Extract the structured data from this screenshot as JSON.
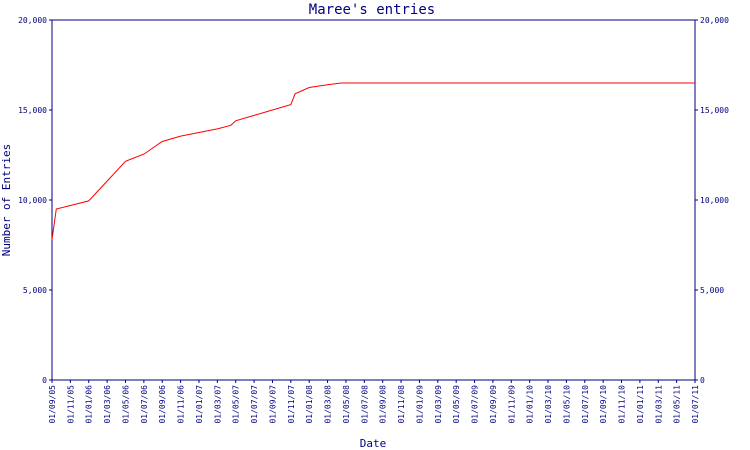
{
  "chart_data": {
    "type": "line",
    "title": "Maree's entries",
    "xlabel": "Date",
    "ylabel": "Number of Entries",
    "ylim": [
      0,
      20000
    ],
    "y_ticks": [
      0,
      5000,
      10000,
      15000,
      20000
    ],
    "y_tick_labels": [
      "0",
      "5,000",
      "10,000",
      "15,000",
      "20,000"
    ],
    "x_tick_labels": [
      "01/09/05",
      "01/11/05",
      "01/01/06",
      "01/03/06",
      "01/05/06",
      "01/07/06",
      "01/09/06",
      "01/11/06",
      "01/01/07",
      "01/03/07",
      "01/05/07",
      "01/07/07",
      "01/09/07",
      "01/11/07",
      "01/01/08",
      "01/03/08",
      "01/05/08",
      "01/07/08",
      "01/09/08",
      "01/11/08",
      "01/01/09",
      "01/03/09",
      "01/05/09",
      "01/07/09",
      "01/09/09",
      "01/11/09",
      "01/01/10",
      "01/03/10",
      "01/05/10",
      "01/07/10",
      "01/09/10",
      "01/11/10",
      "01/01/11",
      "01/03/11",
      "01/05/11",
      "01/07/11"
    ],
    "grid": false,
    "line_color": "#ff0000",
    "axis_color": "#000080",
    "text_color": "#000080",
    "series": [
      {
        "x": [
          "2005-09-01",
          "2005-09-15",
          "2006-01-01",
          "2006-03-01",
          "2006-05-01",
          "2006-07-01",
          "2006-09-01",
          "2006-11-01",
          "2007-01-01",
          "2007-03-01",
          "2007-04-15",
          "2007-05-01",
          "2007-07-01",
          "2007-09-01",
          "2007-11-01",
          "2007-11-15",
          "2008-01-01",
          "2008-03-01",
          "2008-04-15",
          "2011-07-01"
        ],
        "values": [
          7800,
          9500,
          9950,
          11050,
          12150,
          12550,
          13250,
          13550,
          13750,
          13950,
          14150,
          14400,
          14700,
          15000,
          15300,
          15900,
          16250,
          16400,
          16500,
          16500
        ]
      }
    ]
  }
}
